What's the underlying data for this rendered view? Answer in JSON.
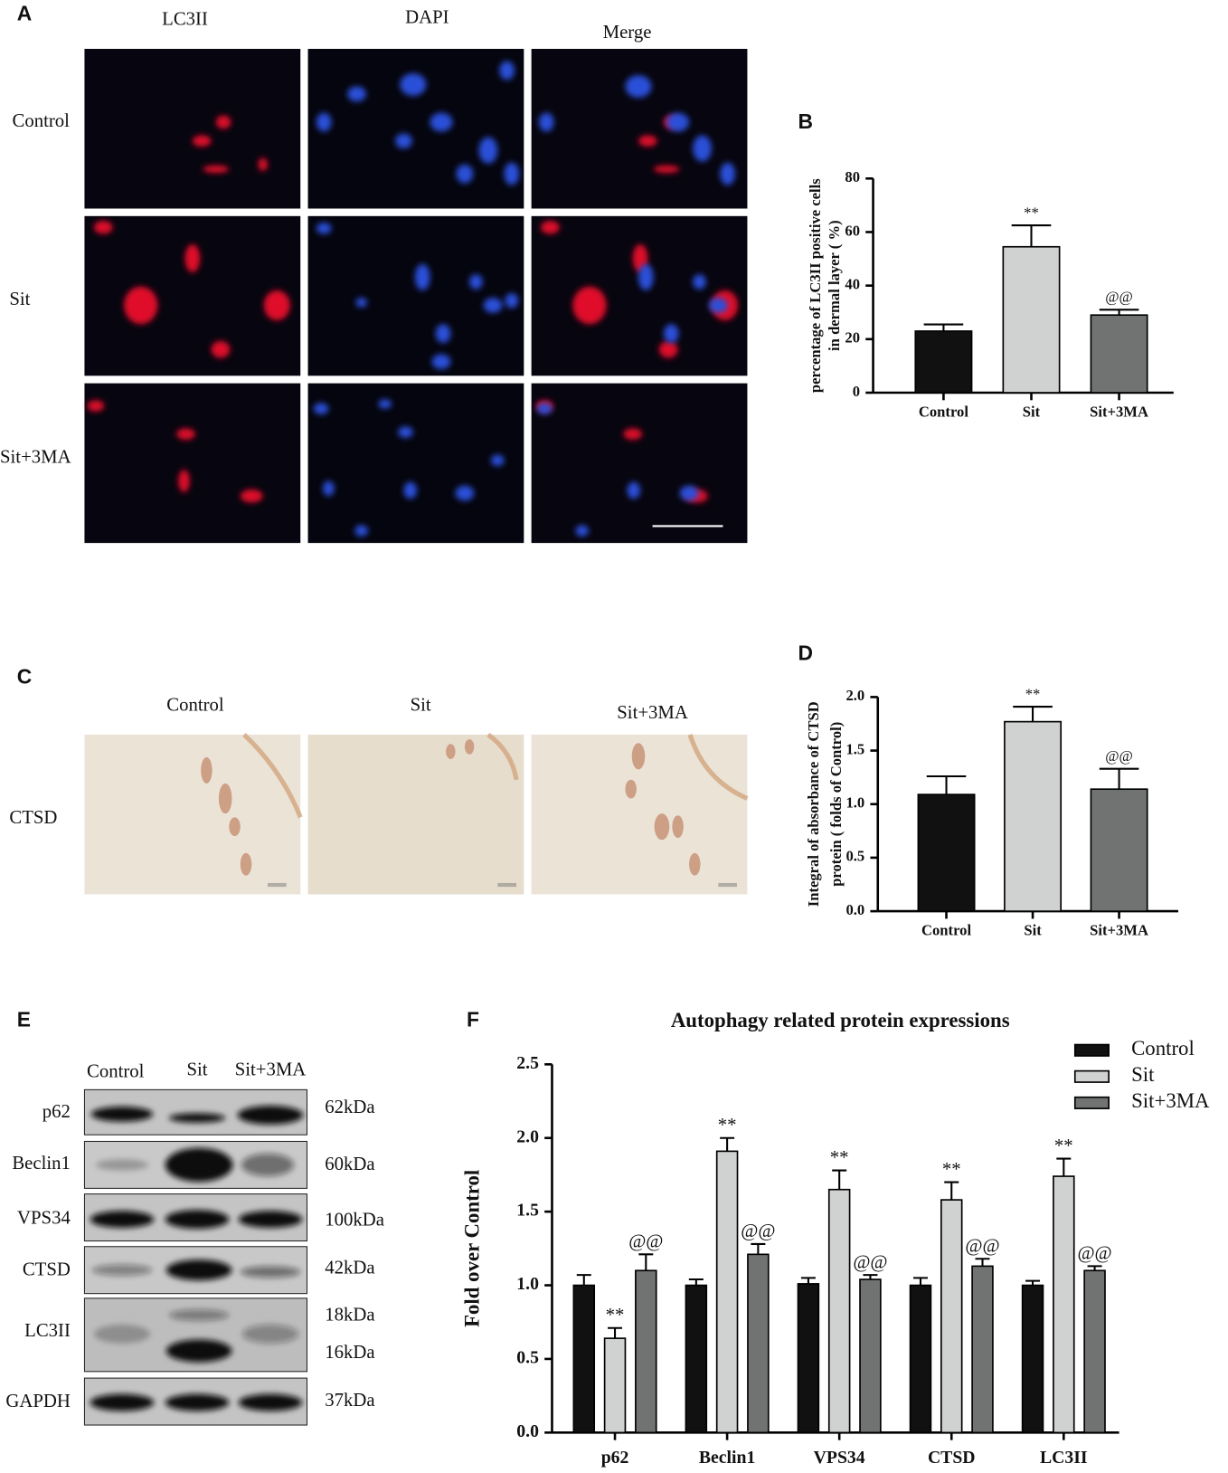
{
  "figure": {
    "labels": [
      "A",
      "B",
      "C",
      "D",
      "E",
      "F"
    ]
  },
  "panel_a": {
    "columns": [
      "LC3II",
      "DAPI",
      "Merge"
    ],
    "rows": [
      "Control",
      "Sit",
      "Sit+3MA"
    ]
  },
  "panel_c": {
    "columns": [
      "Control",
      "Sit",
      "Sit+3MA"
    ],
    "row": "CTSD"
  },
  "panel_e": {
    "columns": [
      "Control",
      "Sit",
      "Sit+3MA"
    ],
    "rows": [
      {
        "protein": "p62",
        "sizes": [
          "62kDa"
        ]
      },
      {
        "protein": "Beclin1",
        "sizes": [
          "60kDa"
        ]
      },
      {
        "protein": "VPS34",
        "sizes": [
          "100kDa"
        ]
      },
      {
        "protein": "CTSD",
        "sizes": [
          "42kDa"
        ]
      },
      {
        "protein": "LC3II",
        "sizes": [
          "18kDa",
          "16kDa"
        ]
      },
      {
        "protein": "GAPDH",
        "sizes": [
          "37kDa"
        ]
      }
    ]
  },
  "chart_data": [
    {
      "type": "bar",
      "ylabel": [
        "percentage of LC3II positive cells",
        "in dermal layer ( %)"
      ],
      "categories": [
        "Control",
        "Sit",
        "Sit+3MA"
      ],
      "values": [
        23,
        54.5,
        29
      ],
      "errors": [
        2.5,
        8,
        2
      ],
      "colors": [
        "#111111",
        "#d0d2d2",
        "#707372"
      ],
      "annotations": [
        null,
        "**",
        "@@"
      ],
      "ylim": [
        0,
        80
      ],
      "yticks": [
        0,
        20,
        40,
        60,
        80
      ]
    },
    {
      "type": "bar",
      "ylabel": [
        "Integral of absorbance of CTSD",
        "protein ( folds of Control)"
      ],
      "categories": [
        "Control",
        "Sit",
        "Sit+3MA"
      ],
      "values": [
        1.09,
        1.77,
        1.14
      ],
      "errors": [
        0.17,
        0.14,
        0.19
      ],
      "colors": [
        "#111111",
        "#d0d2d2",
        "#707372"
      ],
      "annotations": [
        null,
        "**",
        "@@"
      ],
      "ylim": [
        0,
        2
      ],
      "yticks": [
        {
          "value": 0,
          "label": "0.0"
        },
        {
          "value": 0.5,
          "label": "0.5"
        },
        {
          "value": 1,
          "label": "1.0"
        },
        {
          "value": 1.5,
          "label": "1.5"
        },
        {
          "value": 2,
          "label": "2.0"
        }
      ]
    },
    {
      "type": "grouped_bar",
      "title": "Autophagy related protein expressions",
      "ylabel": [
        "Fold over Control"
      ],
      "categories": [
        "p62",
        "Beclin1",
        "VPS34",
        "CTSD",
        "LC3II"
      ],
      "legend": "upper right",
      "series": [
        {
          "name": "Control",
          "color": "#111111",
          "values": [
            1.0,
            1.0,
            1.01,
            1.0,
            1.0
          ],
          "errors": [
            0.07,
            0.04,
            0.04,
            0.05,
            0.03
          ]
        },
        {
          "name": "Sit",
          "color": "#d0d2d2",
          "values": [
            0.64,
            1.91,
            1.65,
            1.58,
            1.74
          ],
          "errors": [
            0.07,
            0.09,
            0.13,
            0.12,
            0.12
          ],
          "annotations": [
            "**",
            "**",
            "**",
            "**",
            "**"
          ]
        },
        {
          "name": "Sit+3MA",
          "color": "#707372",
          "values": [
            1.1,
            1.21,
            1.04,
            1.13,
            1.1
          ],
          "errors": [
            0.11,
            0.07,
            0.03,
            0.05,
            0.03
          ],
          "annotations": [
            "@@",
            "@@",
            "@@",
            "@@",
            "@@"
          ]
        }
      ],
      "ylim": [
        0,
        2.5
      ],
      "yticks": [
        {
          "value": 0,
          "label": "0.0"
        },
        {
          "value": 0.5,
          "label": "0.5"
        },
        {
          "value": 1,
          "label": "1.0"
        },
        {
          "value": 1.5,
          "label": "1.5"
        },
        {
          "value": 2,
          "label": "2.0"
        },
        {
          "value": 2.5,
          "label": "2.5"
        }
      ]
    }
  ]
}
